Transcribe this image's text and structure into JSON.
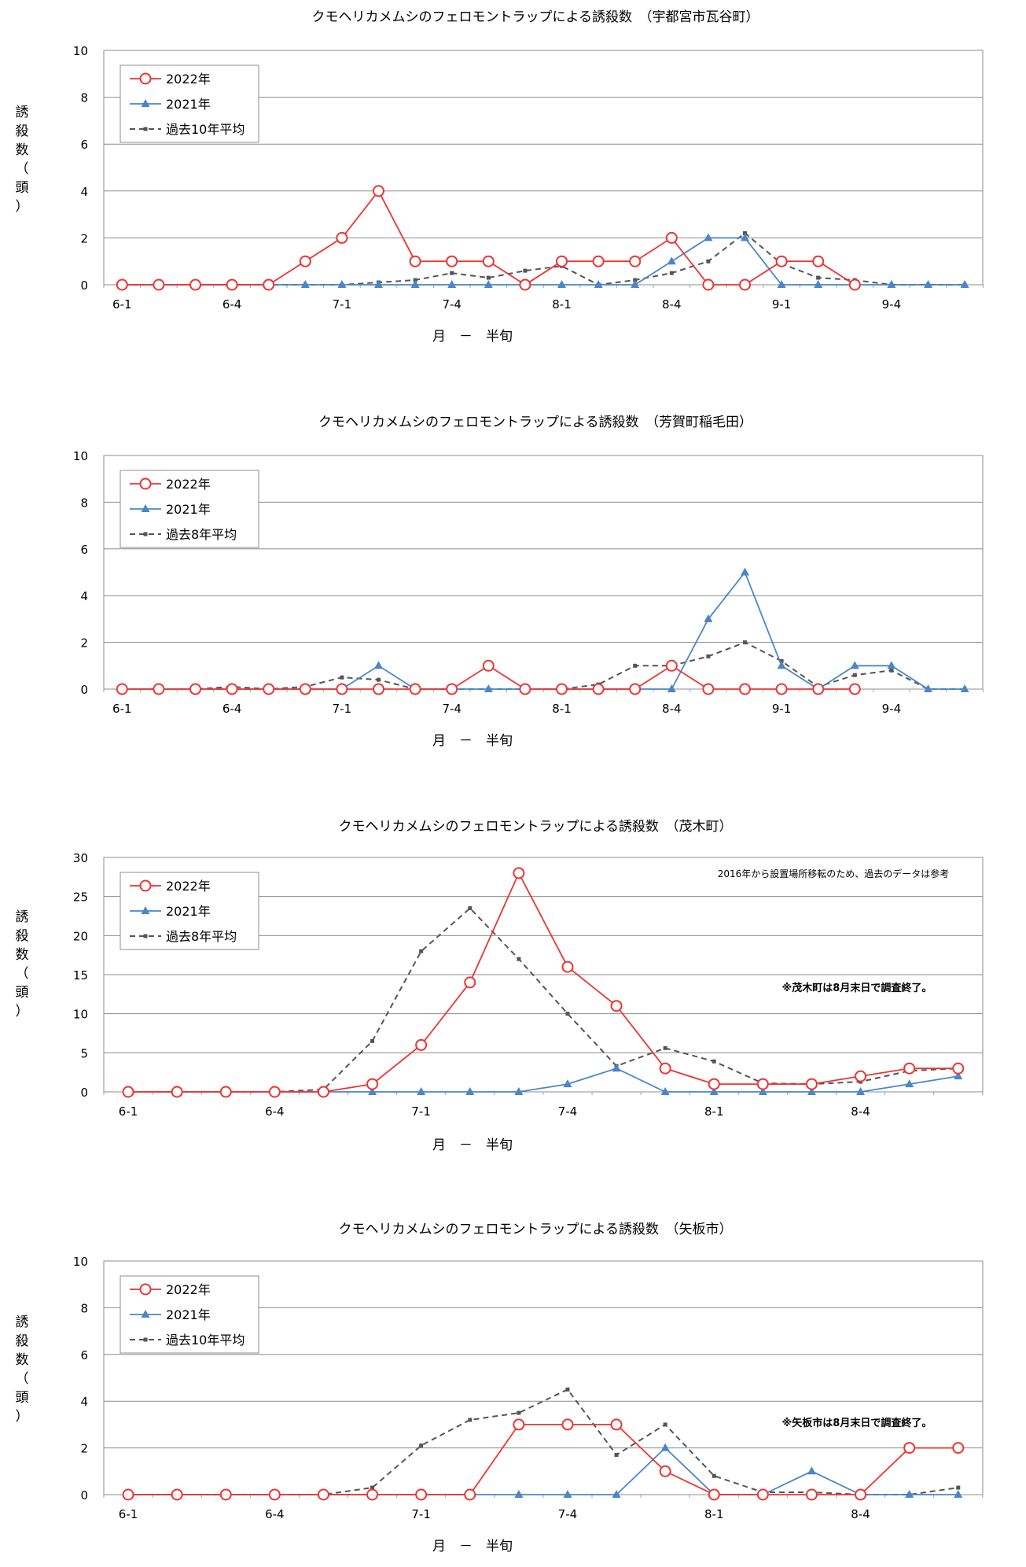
{
  "chart_data": [
    {
      "type": "line",
      "title": "クモヘリカメムシのフェロモントラップによる誘殺数　（宇都宮市瓦谷町）",
      "xlabel": "月　－　半旬",
      "ylabel": "誘殺数（頭）",
      "ylim": [
        0,
        10
      ],
      "ystep": 2,
      "grid": true,
      "legend_position": "top-left",
      "tick_labels": [
        {
          "label": "6-1",
          "index": 0
        },
        {
          "label": "6-4",
          "index": 3
        },
        {
          "label": "7-1",
          "index": 6
        },
        {
          "label": "7-4",
          "index": 9
        },
        {
          "label": "8-1",
          "index": 12
        },
        {
          "label": "8-4",
          "index": 15
        },
        {
          "label": "9-1",
          "index": 18
        },
        {
          "label": "9-4",
          "index": 21
        }
      ],
      "series": [
        {
          "name": "2022年",
          "color": "#ee3333",
          "marker": "circle",
          "values": [
            0,
            0,
            0,
            0,
            0,
            1,
            2,
            4,
            1,
            1,
            1,
            0,
            1,
            1,
            1,
            2,
            0,
            0,
            1,
            1,
            0,
            null,
            null,
            null
          ]
        },
        {
          "name": "2021年",
          "color": "#4a86c8",
          "marker": "triangle",
          "values": [
            0,
            0,
            0,
            0,
            0,
            0,
            0,
            0,
            0,
            0,
            0,
            0,
            0,
            0,
            0,
            1,
            2,
            2,
            0,
            0,
            0,
            0,
            0,
            0
          ]
        },
        {
          "name": "過去10年平均",
          "color": "#555555",
          "marker": "square",
          "dashed": true,
          "values": [
            0,
            0,
            0,
            0,
            0,
            0,
            0,
            0.1,
            0.2,
            0.5,
            0.3,
            0.6,
            0.8,
            0,
            0.2,
            0.5,
            1.0,
            2.2,
            0.9,
            0.3,
            0.2,
            0,
            0,
            0
          ]
        }
      ]
    },
    {
      "type": "line",
      "title": "クモヘリカメムシのフェロモントラップによる誘殺数　（芳賀町稲毛田）",
      "xlabel": "月　－　半旬",
      "ylabel": "",
      "ylim": [
        0,
        10
      ],
      "ystep": 2,
      "grid": true,
      "legend_position": "top-left",
      "tick_labels": [
        {
          "label": "6-1",
          "index": 0
        },
        {
          "label": "6-4",
          "index": 3
        },
        {
          "label": "7-1",
          "index": 6
        },
        {
          "label": "7-4",
          "index": 9
        },
        {
          "label": "8-1",
          "index": 12
        },
        {
          "label": "8-4",
          "index": 15
        },
        {
          "label": "9-1",
          "index": 18
        },
        {
          "label": "9-4",
          "index": 21
        }
      ],
      "series": [
        {
          "name": "2022年",
          "color": "#ee3333",
          "marker": "circle",
          "values": [
            0,
            0,
            0,
            0,
            0,
            0,
            0,
            0,
            0,
            0,
            1,
            0,
            0,
            0,
            0,
            1,
            0,
            0,
            0,
            0,
            0,
            null,
            null,
            null
          ]
        },
        {
          "name": "2021年",
          "color": "#4a86c8",
          "marker": "triangle",
          "values": [
            0,
            0,
            0,
            0,
            0,
            0,
            0,
            1,
            0,
            0,
            0,
            0,
            0,
            0,
            0,
            0,
            3,
            5,
            1,
            0,
            1,
            1,
            0,
            0
          ]
        },
        {
          "name": "過去8年平均",
          "color": "#555555",
          "marker": "square",
          "dashed": true,
          "values": [
            0,
            0,
            0,
            0.1,
            0,
            0.1,
            0.5,
            0.4,
            0,
            0,
            0,
            0,
            0,
            0.2,
            1.0,
            1.0,
            1.4,
            2.0,
            1.2,
            0.1,
            0.6,
            0.8,
            0,
            0
          ]
        }
      ]
    },
    {
      "type": "line",
      "title": "クモヘリカメムシのフェロモントラップによる誘殺数　（茂木町）",
      "xlabel": "月　－　半旬",
      "ylabel": "誘殺数（頭）",
      "ylim": [
        0,
        30
      ],
      "ystep": 5,
      "grid": true,
      "legend_position": "top-left",
      "tick_labels": [
        {
          "label": "6-1",
          "index": 0
        },
        {
          "label": "6-4",
          "index": 3
        },
        {
          "label": "7-1",
          "index": 6
        },
        {
          "label": "7-4",
          "index": 9
        },
        {
          "label": "8-1",
          "index": 12
        },
        {
          "label": "8-4",
          "index": 15
        }
      ],
      "annotations": [
        {
          "text": "2016年から設置場所移転のため、過去のデータは参考",
          "bold": false
        },
        {
          "text": "※茂木町は8月末日で調査終了。",
          "bold": true
        }
      ],
      "series": [
        {
          "name": "2022年",
          "color": "#ee3333",
          "marker": "circle",
          "values": [
            0,
            0,
            0,
            0,
            0,
            1,
            6,
            14,
            28,
            16,
            11,
            3,
            1,
            1,
            1,
            2,
            3,
            3
          ]
        },
        {
          "name": "2021年",
          "color": "#4a86c8",
          "marker": "triangle",
          "values": [
            0,
            0,
            0,
            0,
            0,
            0,
            0,
            0,
            0,
            1,
            3,
            0,
            0,
            0,
            0,
            0,
            1,
            2
          ]
        },
        {
          "name": "過去8年平均",
          "color": "#555555",
          "marker": "square",
          "dashed": true,
          "values": [
            0,
            0,
            0,
            0,
            0.3,
            6.5,
            18,
            23.5,
            17,
            10,
            3.3,
            5.6,
            3.9,
            1.1,
            1.0,
            1.3,
            2.7,
            3.0
          ]
        }
      ]
    },
    {
      "type": "line",
      "title": "クモヘリカメムシのフェロモントラップによる誘殺数　（矢板市）",
      "xlabel": "月　－　半旬",
      "ylabel": "誘殺数（頭）",
      "ylim": [
        0,
        10
      ],
      "ystep": 2,
      "grid": true,
      "legend_position": "top-left",
      "tick_labels": [
        {
          "label": "6-1",
          "index": 0
        },
        {
          "label": "6-4",
          "index": 3
        },
        {
          "label": "7-1",
          "index": 6
        },
        {
          "label": "7-4",
          "index": 9
        },
        {
          "label": "8-1",
          "index": 12
        },
        {
          "label": "8-4",
          "index": 15
        }
      ],
      "annotations": [
        {
          "text": "※矢板市は8月末日で調査終了。",
          "bold": true
        }
      ],
      "series": [
        {
          "name": "2022年",
          "color": "#ee3333",
          "marker": "circle",
          "values": [
            0,
            0,
            0,
            0,
            0,
            0,
            0,
            0,
            3,
            3,
            3,
            1,
            0,
            0,
            0,
            0,
            2,
            2
          ]
        },
        {
          "name": "2021年",
          "color": "#4a86c8",
          "marker": "triangle",
          "values": [
            0,
            0,
            0,
            0,
            0,
            0,
            0,
            0,
            0,
            0,
            0,
            2,
            0,
            0,
            1,
            0,
            0,
            0
          ]
        },
        {
          "name": "過去10年平均",
          "color": "#555555",
          "marker": "square",
          "dashed": true,
          "values": [
            0,
            0,
            0,
            0,
            0,
            0.3,
            2.1,
            3.2,
            3.5,
            4.5,
            1.7,
            3.0,
            0.8,
            0.1,
            0.1,
            0,
            0,
            0.3
          ]
        }
      ]
    }
  ]
}
